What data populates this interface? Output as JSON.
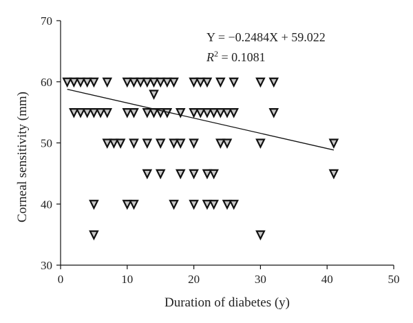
{
  "chart_data": {
    "type": "scatter",
    "title": "",
    "xlabel": "Duration of diabetes (y)",
    "ylabel": "Corneal sensitivity (mm)",
    "xlim": [
      0,
      50
    ],
    "ylim": [
      30,
      70
    ],
    "xticks": [
      0,
      10,
      20,
      30,
      40,
      50
    ],
    "yticks": [
      30,
      40,
      50,
      60,
      70
    ],
    "grid": false,
    "legend": "none",
    "marker": "inverted-triangle",
    "annotation": {
      "equation": "Y = −0.2484X + 59.022",
      "r_squared": "R2 = 0.1081"
    },
    "regression": {
      "slope": -0.2484,
      "intercept": 59.022,
      "x_range": [
        1,
        41
      ]
    },
    "points": [
      [
        1,
        60
      ],
      [
        2,
        60
      ],
      [
        3,
        60
      ],
      [
        4,
        60
      ],
      [
        5,
        60
      ],
      [
        7,
        60
      ],
      [
        10,
        60
      ],
      [
        11,
        60
      ],
      [
        12,
        60
      ],
      [
        13,
        60
      ],
      [
        14,
        60
      ],
      [
        15,
        60
      ],
      [
        16,
        60
      ],
      [
        17,
        60
      ],
      [
        20,
        60
      ],
      [
        21,
        60
      ],
      [
        22,
        60
      ],
      [
        24,
        60
      ],
      [
        26,
        60
      ],
      [
        30,
        60
      ],
      [
        32,
        60
      ],
      [
        14,
        58
      ],
      [
        2,
        55
      ],
      [
        3,
        55
      ],
      [
        4,
        55
      ],
      [
        5,
        55
      ],
      [
        6,
        55
      ],
      [
        7,
        55
      ],
      [
        10,
        55
      ],
      [
        11,
        55
      ],
      [
        13,
        55
      ],
      [
        14,
        55
      ],
      [
        15,
        55
      ],
      [
        16,
        55
      ],
      [
        18,
        55
      ],
      [
        20,
        55
      ],
      [
        21,
        55
      ],
      [
        22,
        55
      ],
      [
        23,
        55
      ],
      [
        24,
        55
      ],
      [
        25,
        55
      ],
      [
        26,
        55
      ],
      [
        32,
        55
      ],
      [
        7,
        50
      ],
      [
        8,
        50
      ],
      [
        9,
        50
      ],
      [
        11,
        50
      ],
      [
        13,
        50
      ],
      [
        15,
        50
      ],
      [
        17,
        50
      ],
      [
        18,
        50
      ],
      [
        20,
        50
      ],
      [
        24,
        50
      ],
      [
        25,
        50
      ],
      [
        30,
        50
      ],
      [
        41,
        50
      ],
      [
        13,
        45
      ],
      [
        15,
        45
      ],
      [
        18,
        45
      ],
      [
        20,
        45
      ],
      [
        22,
        45
      ],
      [
        23,
        45
      ],
      [
        41,
        45
      ],
      [
        5,
        40
      ],
      [
        10,
        40
      ],
      [
        11,
        40
      ],
      [
        17,
        40
      ],
      [
        20,
        40
      ],
      [
        22,
        40
      ],
      [
        23,
        40
      ],
      [
        25,
        40
      ],
      [
        26,
        40
      ],
      [
        5,
        35
      ],
      [
        30,
        35
      ]
    ]
  }
}
